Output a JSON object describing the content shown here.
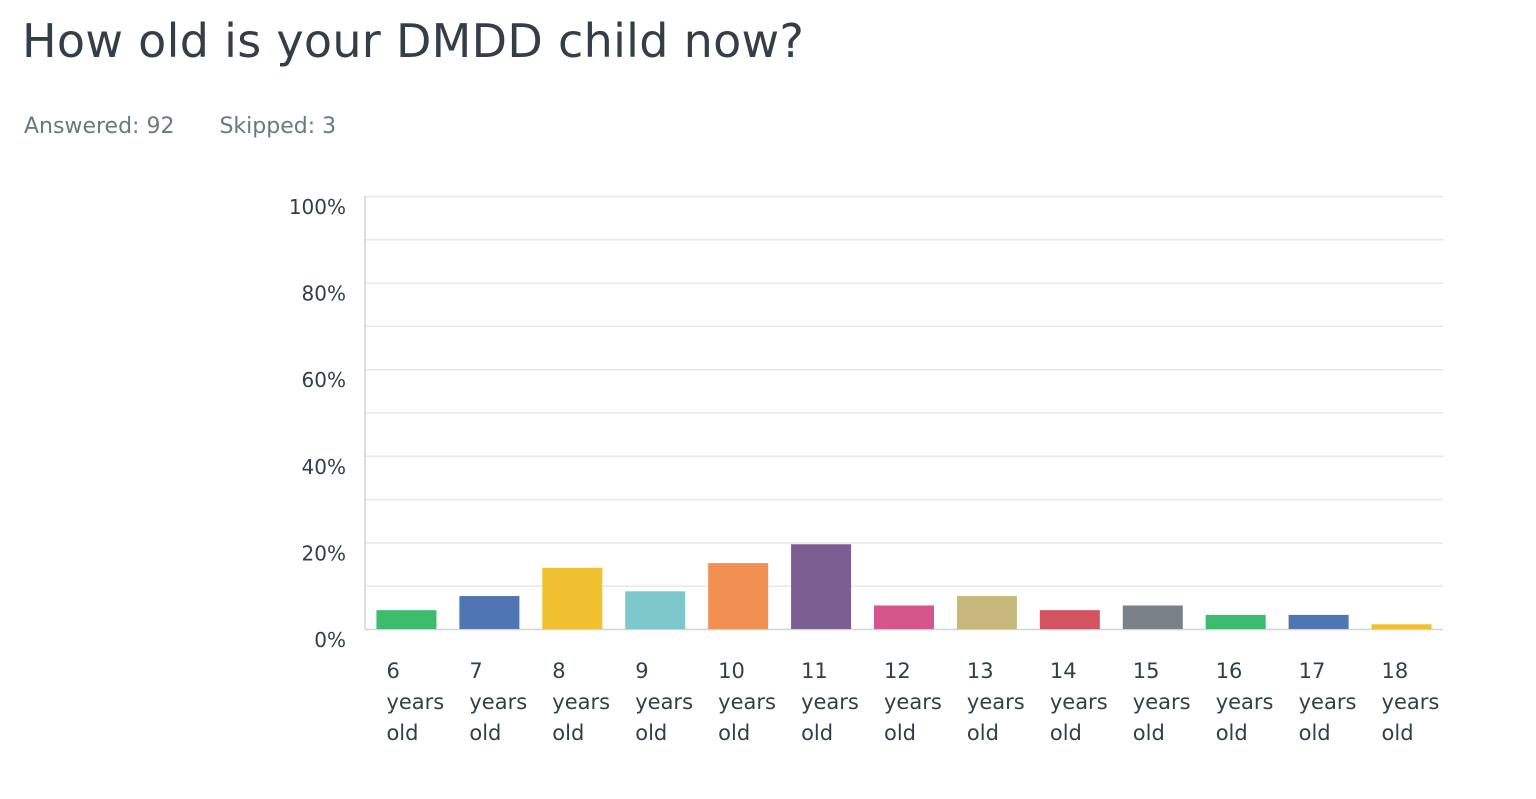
{
  "question": {
    "title": "How old is your DMDD child now?",
    "answered": "Answered: 92",
    "skipped": "Skipped: 3"
  },
  "chart_data": {
    "type": "bar",
    "categories": [
      "6 years old",
      "7 years old",
      "8 years old",
      "9 years old",
      "10 years old",
      "11 years old",
      "12 years old",
      "13 years old",
      "14 years old",
      "15 years old",
      "16 years old",
      "17 years old",
      "18 years old"
    ],
    "category_lines": [
      [
        "6",
        "years",
        "old"
      ],
      [
        "7",
        "years",
        "old"
      ],
      [
        "8",
        "years",
        "old"
      ],
      [
        "9",
        "years",
        "old"
      ],
      [
        "10",
        "years",
        "old"
      ],
      [
        "11",
        "years",
        "old"
      ],
      [
        "12",
        "years",
        "old"
      ],
      [
        "13",
        "years",
        "old"
      ],
      [
        "14",
        "years",
        "old"
      ],
      [
        "15",
        "years",
        "old"
      ],
      [
        "16",
        "years",
        "old"
      ],
      [
        "17",
        "years",
        "old"
      ],
      [
        "18",
        "years",
        "old"
      ]
    ],
    "values": [
      4.35,
      7.61,
      14.13,
      8.7,
      15.22,
      19.57,
      5.43,
      7.61,
      4.35,
      5.43,
      3.26,
      3.26,
      1.09
    ],
    "colors": [
      "#3dbb6f",
      "#4f76b3",
      "#f0c030",
      "#7ec8cc",
      "#f19050",
      "#7b5e92",
      "#d4568b",
      "#c7b97c",
      "#d35361",
      "#7a8287",
      "#3dbb6f",
      "#4f76b3",
      "#f0c030"
    ],
    "ylim": [
      0,
      100
    ],
    "yticks": [
      "100%",
      "80%",
      "60%",
      "40%",
      "20%",
      "0%"
    ],
    "ytick_values": [
      100,
      80,
      60,
      40,
      20,
      0
    ],
    "grid": true
  }
}
